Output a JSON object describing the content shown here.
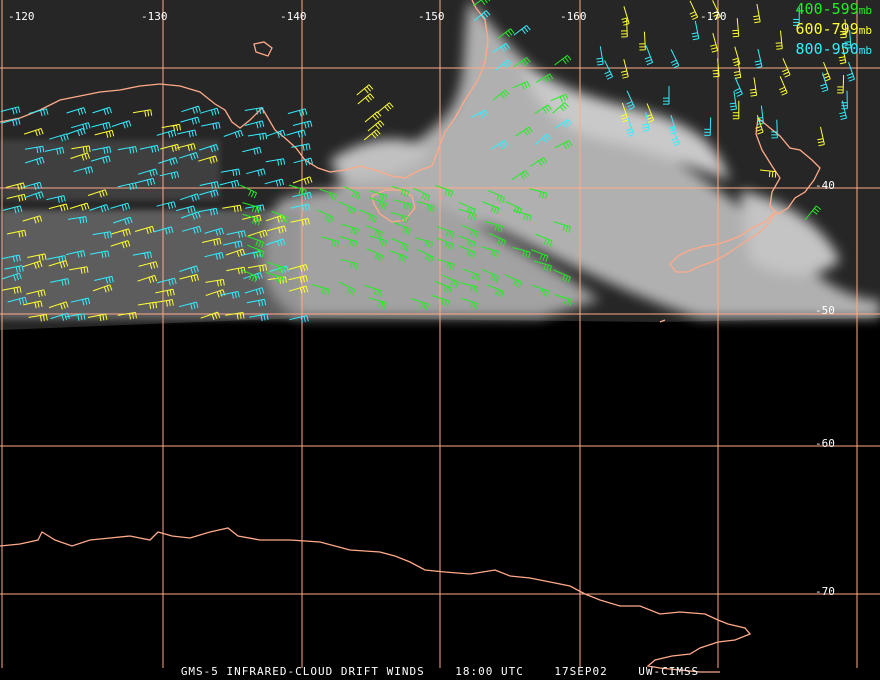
{
  "map": {
    "lon_labels": [
      "-120",
      "-130",
      "-140",
      "-150",
      "-160",
      "-170"
    ],
    "lat_labels": [
      "-40",
      "-50",
      "-60",
      "-70"
    ]
  },
  "legend": [
    {
      "range": "400-599",
      "unit": "mb",
      "color": "#22ee22"
    },
    {
      "range": "600-799",
      "unit": "mb",
      "color": "#ffff33"
    },
    {
      "range": "800-950",
      "unit": "mb",
      "color": "#33eeff"
    }
  ],
  "caption": {
    "product": "GMS-5 INFRARED-CLOUD DRIFT WINDS",
    "time": "18:00 UTC",
    "date": "17SEP02",
    "source": "UW-CIMSS"
  },
  "colors": {
    "grid": "#ffaa88",
    "coast": "#ffaa88",
    "cloud": "#d8d8d8",
    "ocean": "#2a2a2a"
  }
}
